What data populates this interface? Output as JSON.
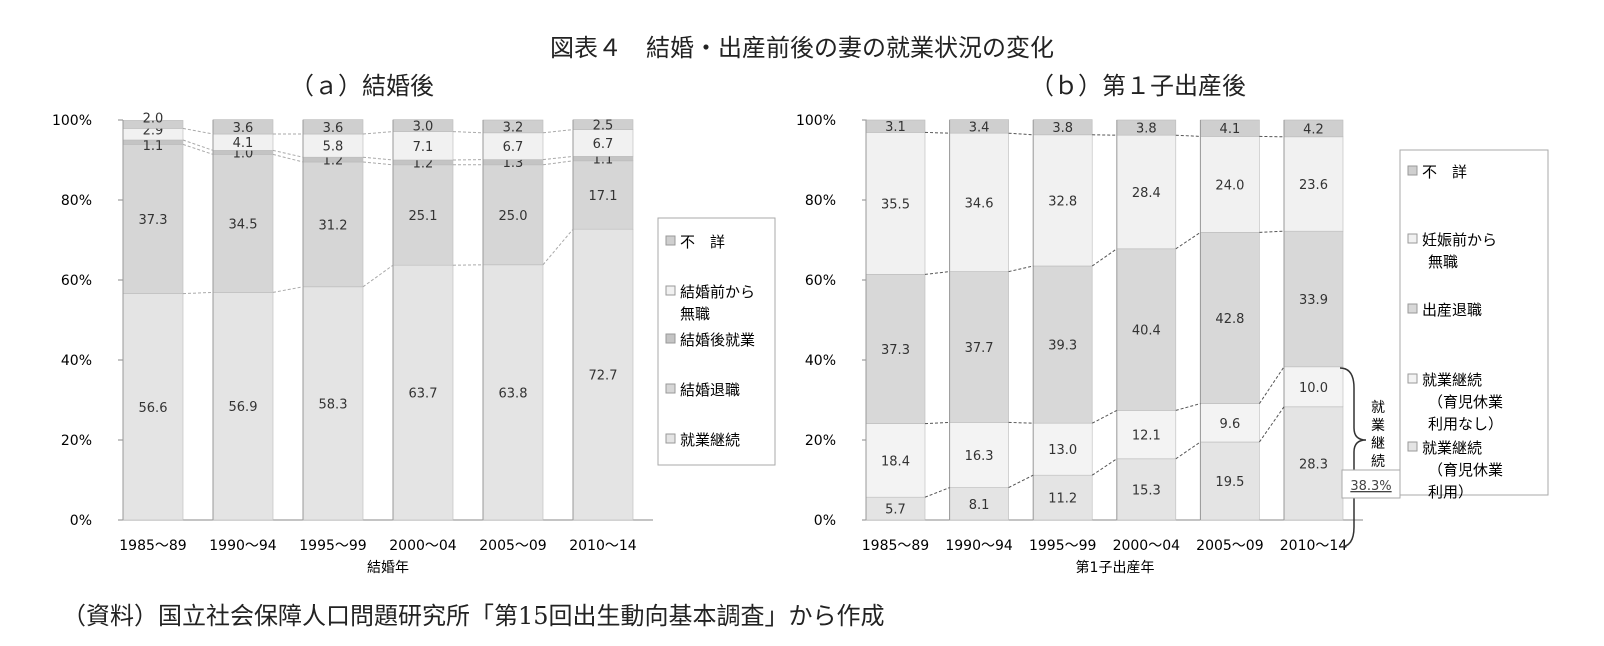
{
  "title": "図表４　結婚・出産前後の妻の就業状況の変化",
  "source": "（資料）国立社会保障人口問題研究所「第15回出生動向基本調査」から作成",
  "chart_data": [
    {
      "type": "bar",
      "stacked": true,
      "subtitle": "（ａ）結婚後",
      "xlabel": "結婚年",
      "ylim": [
        0,
        100
      ],
      "yticks": [
        "0%",
        "20%",
        "40%",
        "60%",
        "80%",
        "100%"
      ],
      "categories": [
        "1985～89",
        "1990～94",
        "1995～99",
        "2000～04",
        "2005～09",
        "2010～14"
      ],
      "series": [
        {
          "name": "就業継続",
          "values": [
            56.6,
            56.9,
            58.3,
            63.7,
            63.8,
            72.7
          ],
          "color": "#e4e4e4"
        },
        {
          "name": "結婚退職",
          "values": [
            37.3,
            34.5,
            31.2,
            25.1,
            25.0,
            17.1
          ],
          "color": "#d6d6d6"
        },
        {
          "name": "結婚後就業",
          "values": [
            1.1,
            1.0,
            1.2,
            1.2,
            1.3,
            1.1
          ],
          "color": "#c4c4c4"
        },
        {
          "name": "結婚前から無職",
          "values": [
            2.9,
            4.1,
            5.8,
            7.1,
            6.7,
            6.7
          ],
          "color": "#f1f1f1"
        },
        {
          "name": "不　詳",
          "values": [
            2.0,
            3.6,
            3.6,
            3.0,
            3.2,
            2.5
          ],
          "color": "#cfcfcf"
        }
      ],
      "legend": [
        "不　詳",
        "結婚前から無職",
        "結婚後就業",
        "結婚退職",
        "就業継続"
      ]
    },
    {
      "type": "bar",
      "stacked": true,
      "subtitle": "（ｂ）第１子出産後",
      "xlabel": "第1子出産年",
      "ylim": [
        0,
        100
      ],
      "yticks": [
        "0%",
        "20%",
        "40%",
        "60%",
        "80%",
        "100%"
      ],
      "categories": [
        "1985～89",
        "1990～94",
        "1995～99",
        "2000～04",
        "2005～09",
        "2010～14"
      ],
      "series": [
        {
          "name": "就業継続（育児休業利用）",
          "values": [
            5.7,
            8.1,
            11.2,
            15.3,
            19.5,
            28.3
          ],
          "color": "#e4e4e4"
        },
        {
          "name": "就業継続（育児休業利用なし）",
          "values": [
            18.4,
            16.3,
            13.0,
            12.1,
            9.6,
            10.0
          ],
          "color": "#f3f3f3"
        },
        {
          "name": "出産退職",
          "values": [
            37.3,
            37.7,
            39.3,
            40.4,
            42.8,
            33.9
          ],
          "color": "#d8d8d8"
        },
        {
          "name": "妊娠前から無職",
          "values": [
            35.5,
            34.6,
            32.8,
            28.4,
            24.0,
            23.6
          ],
          "color": "#f1f1f1"
        },
        {
          "name": "不　詳",
          "values": [
            3.1,
            3.4,
            3.8,
            3.8,
            4.1,
            4.2
          ],
          "color": "#cfcfcf"
        }
      ],
      "legend": [
        "不　詳",
        "妊娠前から無職",
        "出産退職",
        "就業継続（育児休業利用なし）",
        "就業継続（育児休業利用）"
      ],
      "annotation": {
        "label": "就業継続",
        "value": "38.3%"
      }
    }
  ]
}
